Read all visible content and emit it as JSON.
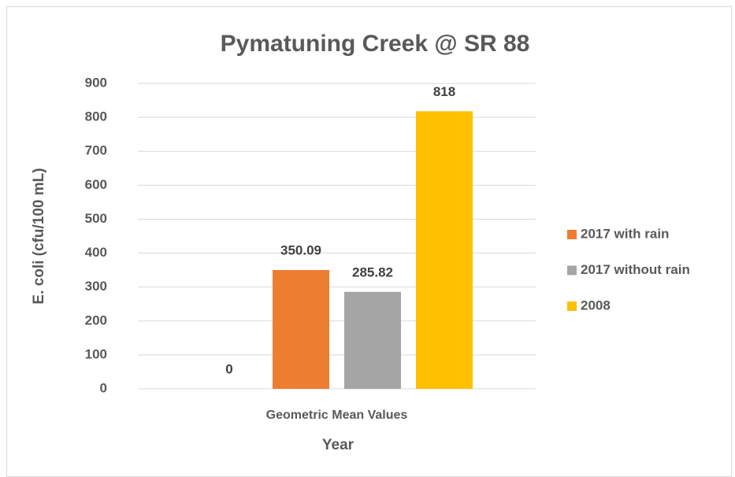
{
  "chart_data": {
    "type": "bar",
    "title": "Pymatuning Creek @ SR 88",
    "x_label": "Year",
    "y_label": "E. coli (cfu/100 mL)",
    "categories": [
      "Geometric Mean Values"
    ],
    "series": [
      {
        "color": "#4472c4",
        "values": [
          0
        ]
      },
      {
        "name": "2017 with rain",
        "color": "#ed7d31",
        "values": [
          350.09
        ]
      },
      {
        "name": "2017 without rain",
        "color": "#a5a5a5",
        "values": [
          285.82
        ]
      },
      {
        "name": "2008",
        "color": "#ffc000",
        "values": [
          818
        ]
      }
    ],
    "ylim": [
      0,
      900
    ],
    "yticks": [
      0,
      100,
      200,
      300,
      400,
      500,
      600,
      700,
      800,
      900
    ],
    "grid": true,
    "legend": "right"
  }
}
